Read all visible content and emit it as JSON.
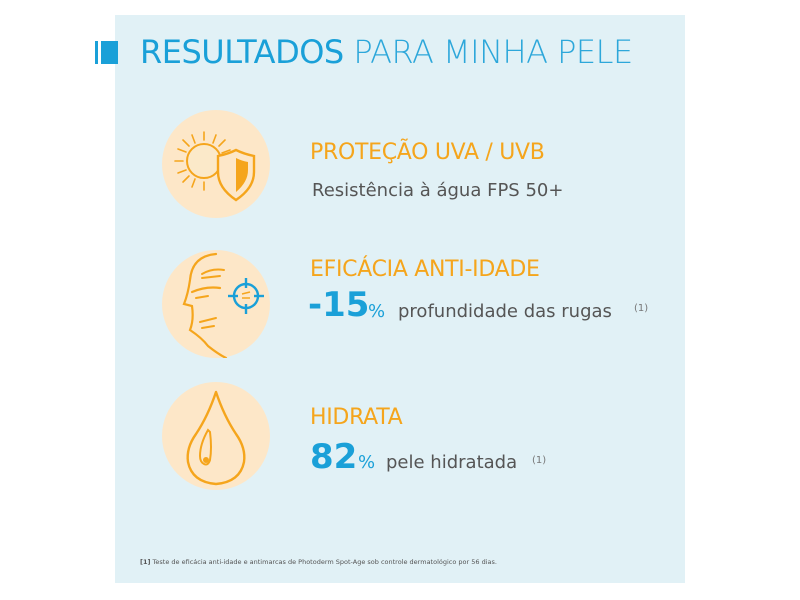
{
  "title": {
    "part1": "RESULTADOS",
    "part2": "PARA MINHA PELE"
  },
  "items": [
    {
      "heading": "PROTEÇÃO UVA / UVB",
      "text": "Resistência à água FPS 50+"
    },
    {
      "heading": "EFICÁCIA ANTI-IDADE",
      "value": "-15",
      "unit": "%",
      "text": "profundidade das rugas",
      "ref": "(1)"
    },
    {
      "heading": "HIDRATA",
      "value": "82",
      "unit": "%",
      "text": "pele hidratada",
      "ref": "(1)"
    }
  ],
  "footnote": {
    "marker": "[1]",
    "text": "Teste de eficácia anti-idade e antimarcas de Photoderm Spot-Age sob controle dermatológico por 56 dias."
  },
  "colors": {
    "accent_blue": "#1aa0d8",
    "accent_orange": "#f5a51c",
    "panel_bg": "#e1f1f6",
    "circle_bg": "#fde7c8"
  },
  "icons": [
    "sun-shield-icon",
    "face-target-icon",
    "water-drop-icon"
  ]
}
